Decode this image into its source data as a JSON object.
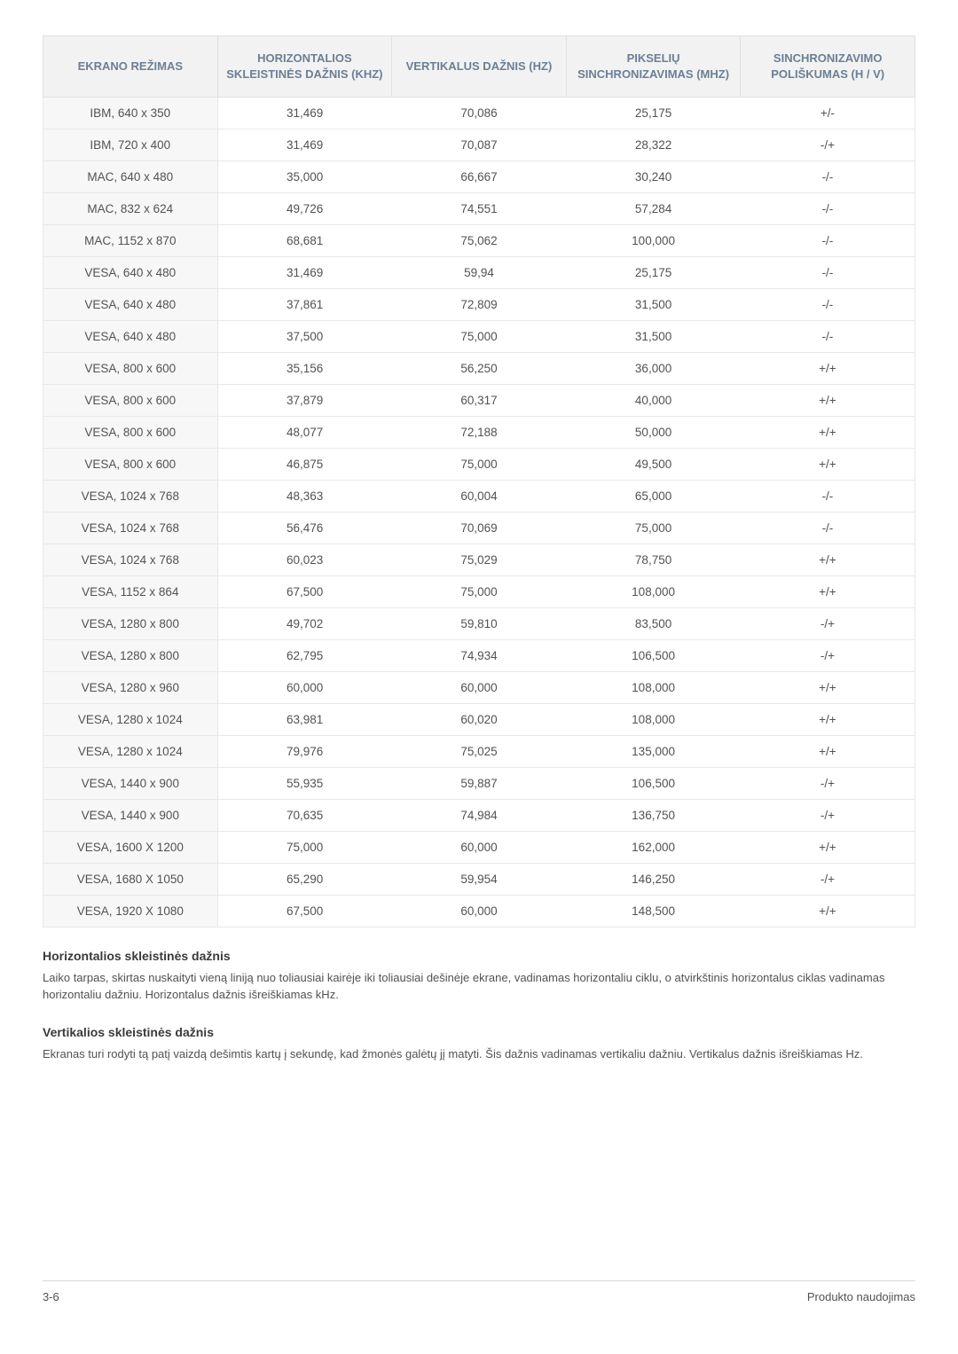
{
  "table": {
    "columns": [
      "EKRANO REŽIMAS",
      "HORIZONTALIOS SKLEISTINĖS DAŽNIS (KHZ)",
      "VERTIKALUS DAŽNIS (HZ)",
      "PIKSELIŲ SINCHRONIZAVIMAS (MHZ)",
      "SINCHRONIZAVIMO POLIŠKUMAS (H / V)"
    ],
    "col_widths": [
      "20%",
      "20%",
      "20%",
      "20%",
      "20%"
    ],
    "header_bg": "#f2f2f2",
    "header_fg": "#6b7f94",
    "firstcol_bg": "#f7f7f7",
    "border_color": "#e8e8e8",
    "fontsize_header": 13,
    "fontsize_cell": 13.5,
    "rows": [
      [
        "IBM, 640 x 350",
        "31,469",
        "70,086",
        "25,175",
        "+/-"
      ],
      [
        "IBM, 720 x 400",
        "31,469",
        "70,087",
        "28,322",
        "-/+"
      ],
      [
        "MAC, 640 x 480",
        "35,000",
        "66,667",
        "30,240",
        "-/-"
      ],
      [
        "MAC, 832 x 624",
        "49,726",
        "74,551",
        "57,284",
        "-/-"
      ],
      [
        "MAC, 1152 x 870",
        "68,681",
        "75,062",
        "100,000",
        "-/-"
      ],
      [
        "VESA, 640 x 480",
        "31,469",
        "59,94",
        "25,175",
        "-/-"
      ],
      [
        "VESA, 640 x 480",
        "37,861",
        "72,809",
        "31,500",
        "-/-"
      ],
      [
        "VESA, 640 x 480",
        "37,500",
        "75,000",
        "31,500",
        "-/-"
      ],
      [
        "VESA, 800 x 600",
        "35,156",
        "56,250",
        "36,000",
        "+/+"
      ],
      [
        "VESA, 800 x 600",
        "37,879",
        "60,317",
        "40,000",
        "+/+"
      ],
      [
        "VESA, 800 x 600",
        "48,077",
        "72,188",
        "50,000",
        "+/+"
      ],
      [
        "VESA, 800 x 600",
        "46,875",
        "75,000",
        "49,500",
        "+/+"
      ],
      [
        "VESA, 1024 x 768",
        "48,363",
        "60,004",
        "65,000",
        "-/-"
      ],
      [
        "VESA, 1024 x 768",
        "56,476",
        "70,069",
        "75,000",
        "-/-"
      ],
      [
        "VESA, 1024 x 768",
        "60,023",
        "75,029",
        "78,750",
        "+/+"
      ],
      [
        "VESA, 1152 x 864",
        "67,500",
        "75,000",
        "108,000",
        "+/+"
      ],
      [
        "VESA, 1280 x 800",
        "49,702",
        "59,810",
        "83,500",
        "-/+"
      ],
      [
        "VESA, 1280 x 800",
        "62,795",
        "74,934",
        "106,500",
        "-/+"
      ],
      [
        "VESA, 1280 x 960",
        "60,000",
        "60,000",
        "108,000",
        "+/+"
      ],
      [
        "VESA, 1280 x 1024",
        "63,981",
        "60,020",
        "108,000",
        "+/+"
      ],
      [
        "VESA, 1280 x 1024",
        "79,976",
        "75,025",
        "135,000",
        "+/+"
      ],
      [
        "VESA, 1440 x 900",
        "55,935",
        "59,887",
        "106,500",
        "-/+"
      ],
      [
        "VESA, 1440 x 900",
        "70,635",
        "74,984",
        "136,750",
        "-/+"
      ],
      [
        "VESA, 1600 X 1200",
        "75,000",
        "60,000",
        "162,000",
        "+/+"
      ],
      [
        "VESA, 1680 X 1050",
        "65,290",
        "59,954",
        "146,250",
        "-/+"
      ],
      [
        "VESA, 1920 X 1080",
        "67,500",
        "60,000",
        "148,500",
        "+/+"
      ]
    ]
  },
  "sections": {
    "h1": "Horizontalios skleistinės dažnis",
    "p1": "Laiko tarpas, skirtas nuskaityti vieną liniją nuo toliausiai kairėje iki toliausiai dešinėje ekrane, vadinamas horizontaliu ciklu, o atvirkštinis horizontalus ciklas vadinamas horizontaliu dažniu. Horizontalus dažnis išreiškiamas kHz.",
    "h2": "Vertikalios skleistinės dažnis",
    "p2": "Ekranas turi rodyti tą patį vaizdą dešimtis kartų į sekundę, kad žmonės galėtų jį matyti. Šis dažnis vadinamas vertikaliu dažniu. Vertikalus dažnis išreiškiamas Hz."
  },
  "footer": {
    "left": "3-6",
    "right": "Produkto naudojimas"
  },
  "colors": {
    "text": "#525252",
    "heading": "#3a3a3a",
    "background": "#ffffff",
    "footer_border": "#d8d8d8"
  }
}
